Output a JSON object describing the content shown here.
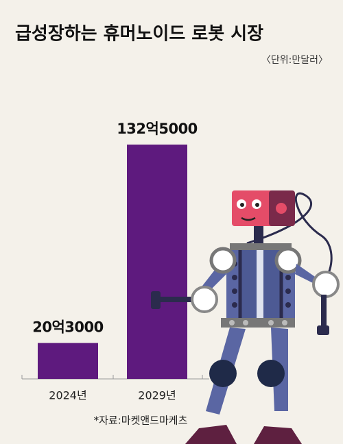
{
  "chart_data": {
    "type": "bar",
    "title": "급성장하는 휴머노이드 로봇 시장",
    "subtitle": "〈단위:만달러〉",
    "categories": [
      "2024년",
      "2029년"
    ],
    "values": [
      203000,
      1325000
    ],
    "value_labels": [
      "20억3000",
      "132억5000"
    ],
    "color": "#5e1a7e",
    "source": "*자료:마켓앤드마케츠"
  }
}
